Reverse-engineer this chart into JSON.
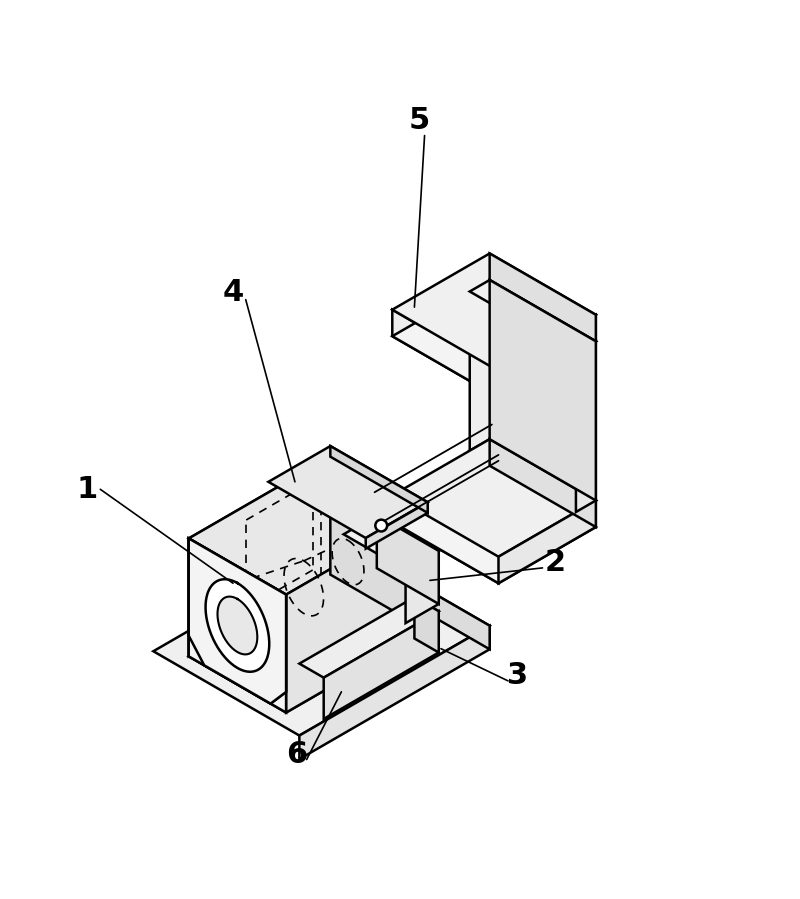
{
  "bg_color": "#ffffff",
  "line_color": "#000000",
  "lw_main": 1.8,
  "lw_dash": 1.2,
  "label_fontsize": 22,
  "figsize": [
    8.0,
    8.99
  ],
  "dpi": 100
}
